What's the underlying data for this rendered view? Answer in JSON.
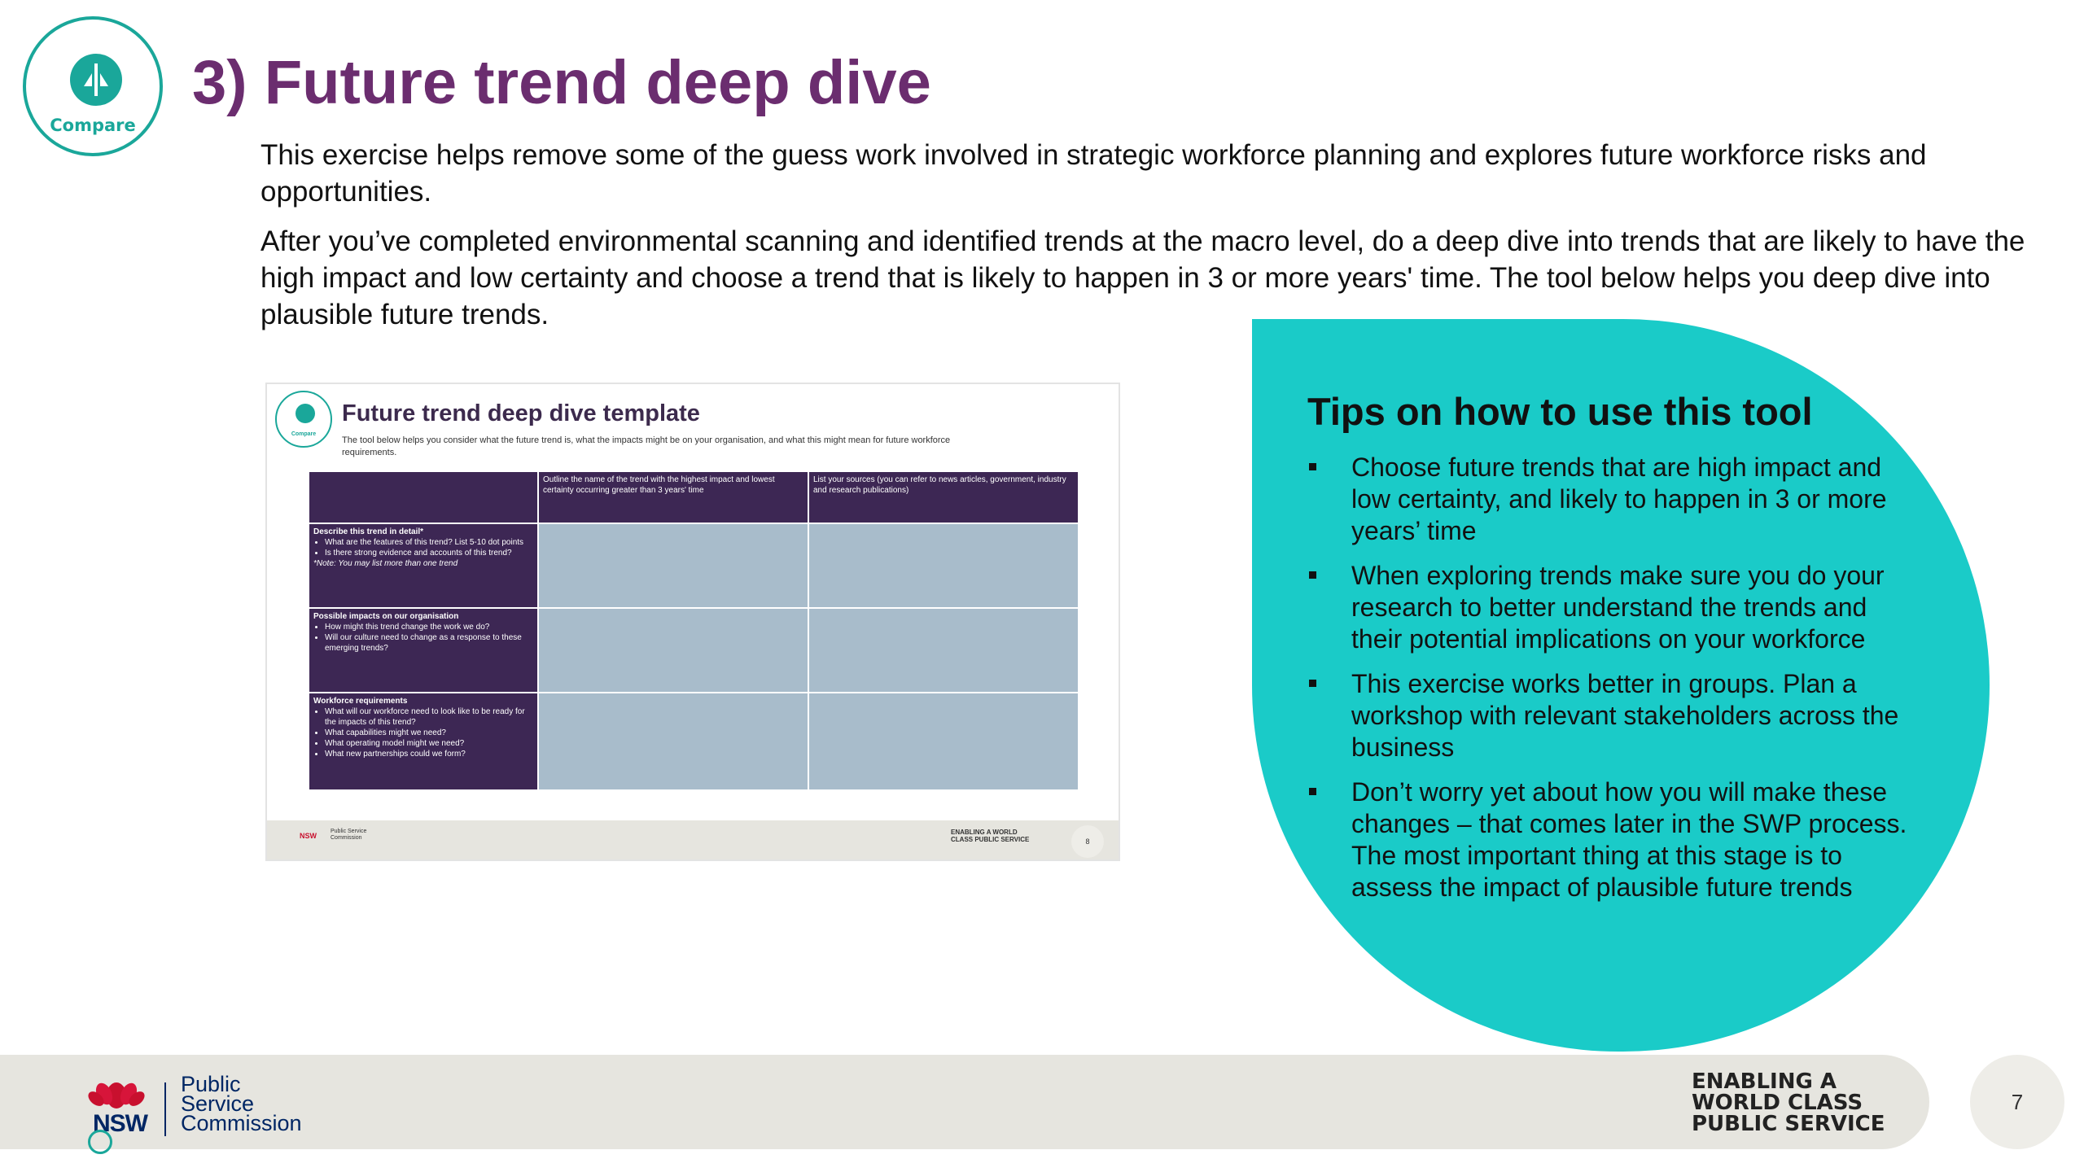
{
  "badge": {
    "label": "Compare",
    "icon": "compare-icon",
    "accent": "#1aa79a"
  },
  "title": "3) Future trend deep dive",
  "intro": [
    "This exercise helps remove some of the guess work involved in strategic workforce planning and explores future workforce risks and opportunities.",
    "After you’ve completed environmental scanning and identified trends at the macro level, do a deep dive into trends that are likely to have the high impact and low certainty and choose a trend that is likely to happen in 3 or more years' time. The tool below helps you deep dive into plausible future trends."
  ],
  "template": {
    "badge_label": "Compare",
    "title": "Future trend deep dive template",
    "subtitle": "The tool below helps you consider what the future trend is, what the impacts might be on your organisation, and what this might mean for future workforce requirements.",
    "col_headers": [
      "",
      "Outline the name of the trend with the highest impact and lowest certainty occurring greater than 3 years' time",
      "List your sources (you can refer to news articles, government, industry and research publications)"
    ],
    "rows": [
      {
        "heading": "Describe this trend in detail*",
        "bullets": [
          "What are the features of this trend? List 5-10 dot points",
          "Is there strong evidence and accounts of this trend?"
        ],
        "note": "*Note: You may list more than one trend"
      },
      {
        "heading": "Possible impacts on our organisation",
        "bullets": [
          "How might this trend change the work we do?",
          "Will our culture need to change as a response to these emerging trends?"
        ],
        "note": ""
      },
      {
        "heading": "Workforce requirements",
        "bullets": [
          "What will our workforce need to look like to be ready for the impacts of this trend?",
          "What capabilities might we need?",
          "What operating model might we need?",
          "What new partnerships could we form?"
        ],
        "note": ""
      }
    ],
    "footer": {
      "nsw": "NSW",
      "org": "Public Service Commission",
      "enabling": "ENABLING A WORLD CLASS PUBLIC SERVICE",
      "page": "8"
    }
  },
  "tips": {
    "heading": "Tips on how to use this tool",
    "items": [
      "Choose future trends that are high impact and low certainty, and likely to happen in 3 or more years’ time",
      "When exploring trends make sure you do your research to better understand the trends and their potential implications on your workforce",
      "This exercise works better in groups. Plan a workshop with relevant stakeholders across the business",
      "Don’t worry yet about how you will make these changes – that comes later in the SWP process. The most important thing at this stage is to assess the impact of plausible future trends"
    ],
    "color": "#1acbc8"
  },
  "footer": {
    "nsw": "NSW",
    "org": "Public\nService\nCommission",
    "enabling": "ENABLING A\nWORLD CLASS\nPUBLIC SERVICE",
    "page": "7"
  }
}
